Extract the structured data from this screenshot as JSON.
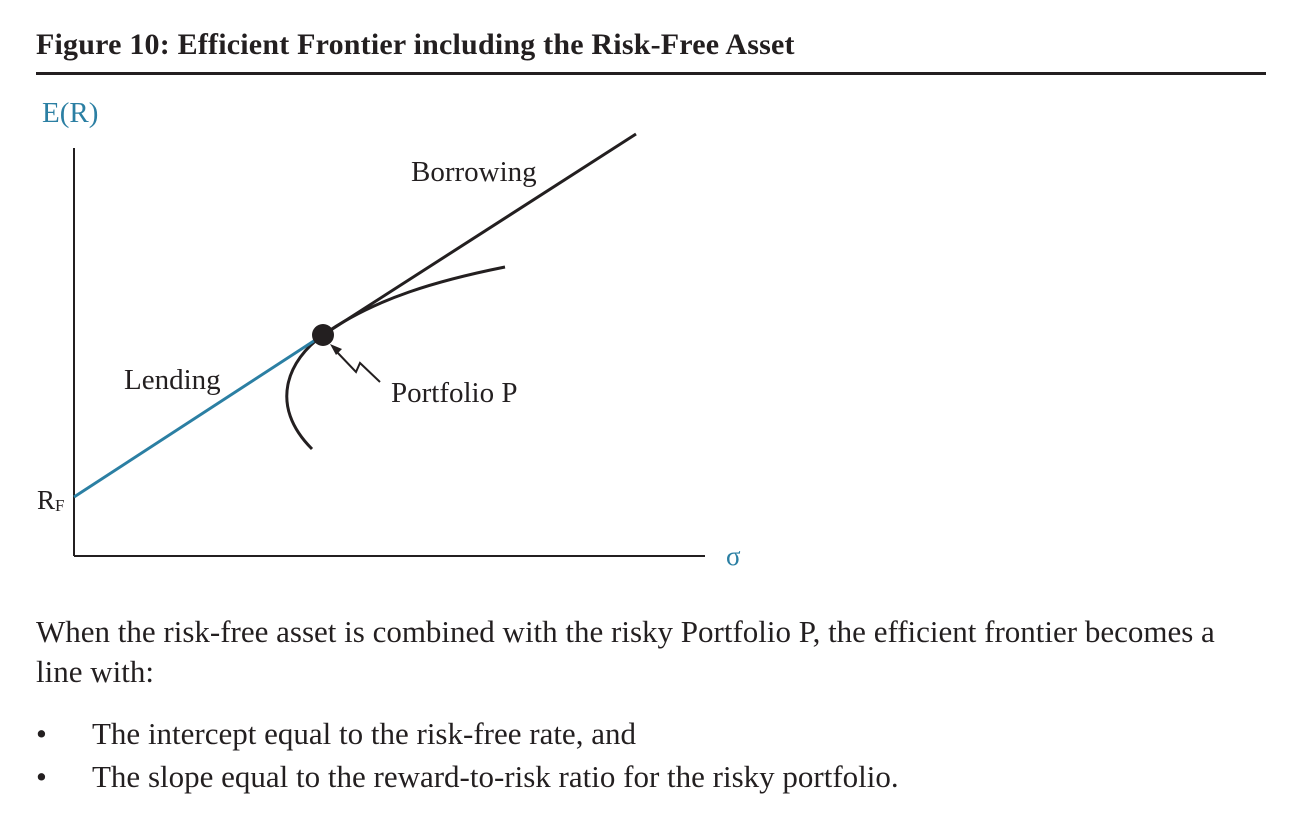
{
  "figure": {
    "title": "Figure 10: Efficient Frontier including the Risk-Free Asset",
    "colors": {
      "ink": "#231f20",
      "accent": "#2b7fa3"
    },
    "labels": {
      "y_axis": "E(R)",
      "x_axis": "σ",
      "rf_main": "R",
      "rf_sub": "F",
      "borrowing": "Borrowing",
      "lending": "Lending",
      "portfolio": "Portfolio P"
    }
  },
  "chart_data": {
    "type": "line",
    "title": "Figure 10: Efficient Frontier including the Risk-Free Asset",
    "xlabel": "σ",
    "ylabel": "E(R)",
    "series": [
      {
        "name": "Lending",
        "description": "line from R_F to Portfolio P"
      },
      {
        "name": "Borrowing",
        "description": "line extending beyond Portfolio P"
      }
    ],
    "annotations": [
      "Portfolio P",
      "R_F"
    ]
  },
  "text": {
    "paragraph": "When the risk-free asset is combined with the risky Portfolio P, the efficient frontier becomes a line with:",
    "bullet_symbol": "•",
    "bullets": [
      "The intercept equal to the risk-free rate, and",
      "The slope equal to the reward-to-risk ratio for the risky portfolio."
    ]
  }
}
